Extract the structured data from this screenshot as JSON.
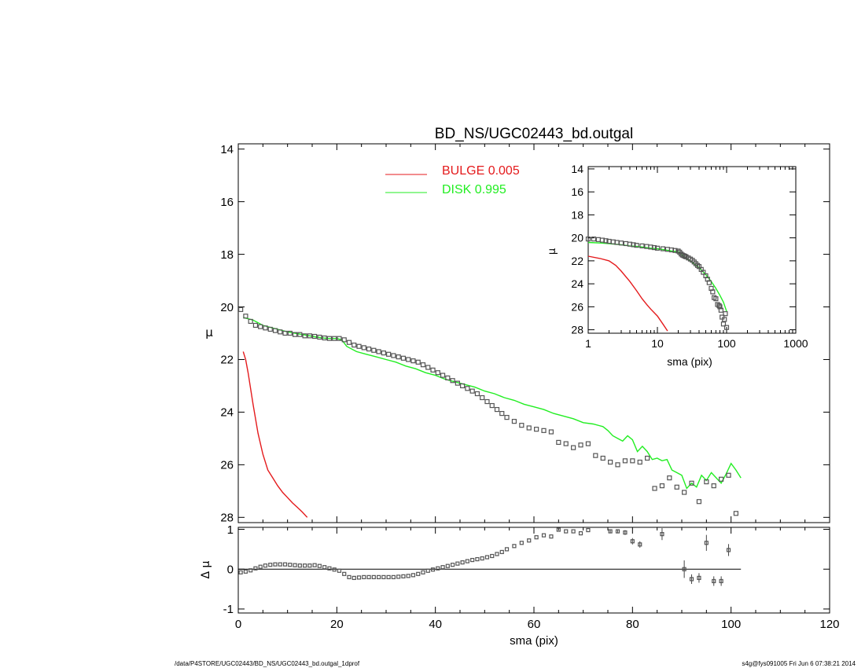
{
  "footer": {
    "path": "/data/P4STORE/UGC02443/BD_NS/UGC02443_bd.outgal_1dprof",
    "stamp": "s4g@fys091005  Fri Jun  6 07:38:21 2014"
  },
  "colors": {
    "bulge": "#e41a1c",
    "disk": "#22ee22",
    "data": "#555555",
    "axes": "#000000"
  },
  "chart_data": [
    {
      "id": "main",
      "type": "line",
      "title": "BD_NS/UGC02443_bd.outgal",
      "xlabel": "",
      "ylabel": "μ",
      "xlim": [
        0,
        120
      ],
      "ylim": [
        28.2,
        13.8
      ],
      "y_inverted": true,
      "yticks": [
        14,
        16,
        18,
        20,
        22,
        24,
        26,
        28
      ],
      "xticks": [
        0,
        20,
        40,
        60,
        80,
        100,
        120
      ],
      "legend": {
        "position": "top-center",
        "entries": [
          {
            "label": "BULGE  0.005",
            "color": "#e41a1c"
          },
          {
            "label": "DISK  0.995",
            "color": "#22ee22"
          }
        ]
      },
      "series": [
        {
          "name": "BULGE",
          "color": "#e41a1c",
          "x": [
            1,
            1.5,
            2,
            3,
            4,
            5,
            6,
            7,
            8,
            9,
            10,
            11,
            12,
            13,
            14
          ],
          "y": [
            21.7,
            22.0,
            22.5,
            23.7,
            24.8,
            25.6,
            26.2,
            26.5,
            26.8,
            27.05,
            27.25,
            27.45,
            27.62,
            27.8,
            28.0
          ]
        },
        {
          "name": "DISK",
          "color": "#22ee22",
          "x": [
            1,
            3,
            5,
            8,
            10,
            13,
            16,
            18,
            20,
            21,
            22,
            24,
            26,
            28,
            30,
            32,
            34,
            36,
            38,
            40,
            42,
            44,
            46,
            48,
            50,
            52,
            54,
            56,
            58,
            60,
            62,
            64,
            66,
            68,
            70,
            72,
            74,
            75,
            76,
            77,
            78,
            79,
            80,
            81,
            82,
            83,
            84,
            85,
            86,
            87,
            88,
            89,
            90,
            91,
            92,
            93,
            94,
            95,
            96,
            97,
            98,
            99,
            100,
            101,
            102
          ],
          "y": [
            20.4,
            20.5,
            20.7,
            20.85,
            20.95,
            21.05,
            21.15,
            21.2,
            21.2,
            21.25,
            21.5,
            21.7,
            21.8,
            21.9,
            22.0,
            22.1,
            22.25,
            22.35,
            22.5,
            22.6,
            22.75,
            22.85,
            22.95,
            23.05,
            23.2,
            23.3,
            23.45,
            23.55,
            23.7,
            23.8,
            23.9,
            24.05,
            24.15,
            24.25,
            24.4,
            24.45,
            24.55,
            24.7,
            24.9,
            25.0,
            25.1,
            24.9,
            25.05,
            25.5,
            25.3,
            25.5,
            25.8,
            25.75,
            25.85,
            25.8,
            26.2,
            26.3,
            26.4,
            26.9,
            26.7,
            26.85,
            26.4,
            26.6,
            26.3,
            26.5,
            26.7,
            26.35,
            25.95,
            26.2,
            26.5
          ]
        },
        {
          "name": "DATA",
          "color": "#555555",
          "x": [
            0.5,
            1.5,
            2.5,
            3.5,
            4.5,
            5.5,
            6.5,
            7.5,
            8.5,
            9.5,
            10.5,
            11.5,
            12.5,
            13.5,
            14.5,
            15.5,
            16.5,
            17.5,
            18.5,
            19.5,
            20.5,
            21.5,
            22.5,
            23.5,
            24.5,
            25.5,
            26.5,
            27.5,
            28.5,
            29.5,
            30.5,
            31.5,
            32.5,
            33.5,
            34.5,
            35.5,
            36.5,
            37.5,
            38.5,
            39.5,
            40.5,
            41.5,
            42.5,
            43.5,
            44.5,
            45.5,
            46.5,
            47.5,
            48.5,
            49.5,
            50.5,
            51.5,
            52.5,
            53.5,
            54.5,
            56,
            57.5,
            59,
            60.5,
            62,
            63.5,
            65,
            66.5,
            68,
            69.5,
            71,
            72.5,
            74,
            75.5,
            77,
            78.5,
            80,
            81.5,
            83,
            84.5,
            86,
            87.5,
            89,
            90.5,
            92,
            93.5,
            95,
            96.5,
            98,
            99.5,
            101
          ],
          "y": [
            20.1,
            20.35,
            20.55,
            20.7,
            20.75,
            20.8,
            20.85,
            20.9,
            20.95,
            21.0,
            21.0,
            21.05,
            21.05,
            21.1,
            21.1,
            21.12,
            21.15,
            21.18,
            21.2,
            21.2,
            21.2,
            21.25,
            21.35,
            21.45,
            21.5,
            21.55,
            21.6,
            21.65,
            21.7,
            21.75,
            21.8,
            21.85,
            21.9,
            21.95,
            22.0,
            22.05,
            22.1,
            22.2,
            22.3,
            22.4,
            22.5,
            22.6,
            22.7,
            22.8,
            22.9,
            23.0,
            23.1,
            23.2,
            23.3,
            23.45,
            23.6,
            23.75,
            23.9,
            24.05,
            24.2,
            24.35,
            24.5,
            24.6,
            24.65,
            24.7,
            24.75,
            25.15,
            25.2,
            25.35,
            25.25,
            25.2,
            25.65,
            25.75,
            25.9,
            26.0,
            25.85,
            25.85,
            25.9,
            25.75,
            26.9,
            26.8,
            26.5,
            26.85,
            27.05,
            26.7,
            27.4,
            26.65,
            26.8,
            26.55,
            26.4,
            27.85
          ]
        }
      ]
    },
    {
      "id": "residual",
      "type": "scatter",
      "xlabel": "sma (pix)",
      "ylabel": "Δ μ",
      "xlim": [
        0,
        120
      ],
      "ylim": [
        -1.1,
        1.05
      ],
      "yticks": [
        -1,
        0,
        1
      ],
      "xticks": [
        0,
        20,
        40,
        60,
        80,
        100,
        120
      ],
      "zero_line": {
        "from": 0,
        "to": 102
      },
      "series": [
        {
          "name": "RESIDUAL",
          "color": "#555555",
          "x": [
            0.5,
            1.5,
            2.5,
            3.5,
            4.5,
            5.5,
            6.5,
            7.5,
            8.5,
            9.5,
            10.5,
            11.5,
            12.5,
            13.5,
            14.5,
            15.5,
            16.5,
            17.5,
            18.5,
            19.5,
            20.5,
            21.5,
            22.5,
            23.5,
            24.5,
            25.5,
            26.5,
            27.5,
            28.5,
            29.5,
            30.5,
            31.5,
            32.5,
            33.5,
            34.5,
            35.5,
            36.5,
            37.5,
            38.5,
            39.5,
            40.5,
            41.5,
            42.5,
            43.5,
            44.5,
            45.5,
            46.5,
            47.5,
            48.5,
            49.5,
            50.5,
            51.5,
            52.5,
            53.5,
            54.5,
            56,
            57.5,
            59,
            60.5,
            62,
            63.5,
            65,
            66.5,
            68,
            69.5,
            71,
            75.5,
            77,
            78.5,
            80,
            81.5,
            86,
            90.5,
            92,
            93.5,
            95,
            96.5,
            98,
            99.5
          ],
          "y": [
            -0.08,
            -0.06,
            -0.03,
            0.02,
            0.06,
            0.09,
            0.11,
            0.12,
            0.12,
            0.12,
            0.11,
            0.1,
            0.09,
            0.09,
            0.09,
            0.1,
            0.08,
            0.05,
            0.02,
            -0.01,
            -0.04,
            -0.12,
            -0.2,
            -0.22,
            -0.21,
            -0.2,
            -0.2,
            -0.2,
            -0.2,
            -0.2,
            -0.2,
            -0.2,
            -0.19,
            -0.18,
            -0.17,
            -0.15,
            -0.12,
            -0.08,
            -0.04,
            -0.01,
            0.02,
            0.05,
            0.08,
            0.11,
            0.14,
            0.17,
            0.2,
            0.23,
            0.25,
            0.27,
            0.3,
            0.33,
            0.38,
            0.43,
            0.5,
            0.58,
            0.66,
            0.72,
            0.8,
            0.85,
            0.82,
            0.99,
            0.95,
            0.95,
            0.9,
            0.98,
            0.95,
            0.95,
            0.92,
            0.7,
            0.62,
            0.88,
            0.0,
            -0.25,
            -0.22,
            0.66,
            -0.3,
            -0.3,
            0.48
          ],
          "err": [
            0,
            0,
            0,
            0,
            0,
            0,
            0,
            0,
            0,
            0,
            0,
            0,
            0,
            0,
            0,
            0,
            0,
            0,
            0,
            0,
            0,
            0,
            0,
            0,
            0,
            0,
            0,
            0,
            0,
            0,
            0,
            0,
            0,
            0,
            0,
            0,
            0,
            0,
            0,
            0,
            0,
            0,
            0,
            0,
            0,
            0,
            0,
            0,
            0,
            0,
            0,
            0,
            0,
            0,
            0,
            0,
            0,
            0,
            0,
            0,
            0,
            0,
            0,
            0,
            0,
            0,
            0.05,
            0.05,
            0.06,
            0.08,
            0.08,
            0.15,
            0.22,
            0.12,
            0.12,
            0.2,
            0.12,
            0.12,
            0.15
          ]
        }
      ]
    },
    {
      "id": "inset",
      "type": "line",
      "xlabel": "sma (pix)",
      "ylabel": "μ",
      "x_scale": "log",
      "xlim": [
        1,
        1000
      ],
      "xticks": [
        1,
        10,
        100,
        1000
      ],
      "ylim": [
        28.3,
        13.8
      ],
      "y_inverted": true,
      "yticks": [
        14,
        16,
        18,
        20,
        22,
        24,
        26,
        28
      ],
      "series": [
        {
          "name": "BULGE",
          "color": "#e41a1c",
          "x": [
            1,
            1.5,
            2,
            2.5,
            3,
            4,
            5,
            6,
            7,
            8,
            10,
            12,
            14
          ],
          "y": [
            21.6,
            21.8,
            22.0,
            22.4,
            22.9,
            23.8,
            24.6,
            25.3,
            25.8,
            26.2,
            26.8,
            27.5,
            28.1
          ]
        },
        {
          "name": "DISK",
          "color": "#22ee22",
          "x": [
            1,
            1.5,
            2,
            3,
            4,
            5,
            6,
            8,
            10,
            13,
            16,
            20,
            25,
            30,
            40,
            50,
            60,
            70,
            80,
            90,
            100
          ],
          "y": [
            20.4,
            20.45,
            20.5,
            20.6,
            20.7,
            20.75,
            20.8,
            20.9,
            20.95,
            21.05,
            21.15,
            21.2,
            21.7,
            22.0,
            22.6,
            23.2,
            23.8,
            24.4,
            25.0,
            25.6,
            26.4
          ]
        },
        {
          "name": "DATA",
          "color": "#555555",
          "x": [
            1,
            1.2,
            1.4,
            1.6,
            1.8,
            2,
            2.3,
            2.6,
            3,
            3.5,
            4,
            4.5,
            5,
            6,
            7,
            8,
            9,
            10,
            12,
            14,
            16,
            18,
            20,
            21,
            22,
            23,
            24,
            25,
            26,
            28,
            30,
            32,
            34,
            36,
            38,
            40,
            43,
            46,
            50,
            53,
            56,
            60,
            63,
            66,
            70,
            74,
            78,
            80,
            83,
            86,
            90,
            93,
            96,
            100
          ],
          "y": [
            20.1,
            20.1,
            20.15,
            20.2,
            20.25,
            20.3,
            20.35,
            20.4,
            20.45,
            20.5,
            20.55,
            20.6,
            20.65,
            20.7,
            20.75,
            20.8,
            20.85,
            20.9,
            20.95,
            21.0,
            21.05,
            21.1,
            21.15,
            21.25,
            21.4,
            21.5,
            21.55,
            21.6,
            21.65,
            21.75,
            21.85,
            21.95,
            22.1,
            22.25,
            22.4,
            22.5,
            22.75,
            23.0,
            23.3,
            23.6,
            23.9,
            24.4,
            24.7,
            25.2,
            25.3,
            25.8,
            25.9,
            26.0,
            26.3,
            26.9,
            27.5,
            27.1,
            26.6,
            27.8
          ]
        }
      ]
    }
  ]
}
